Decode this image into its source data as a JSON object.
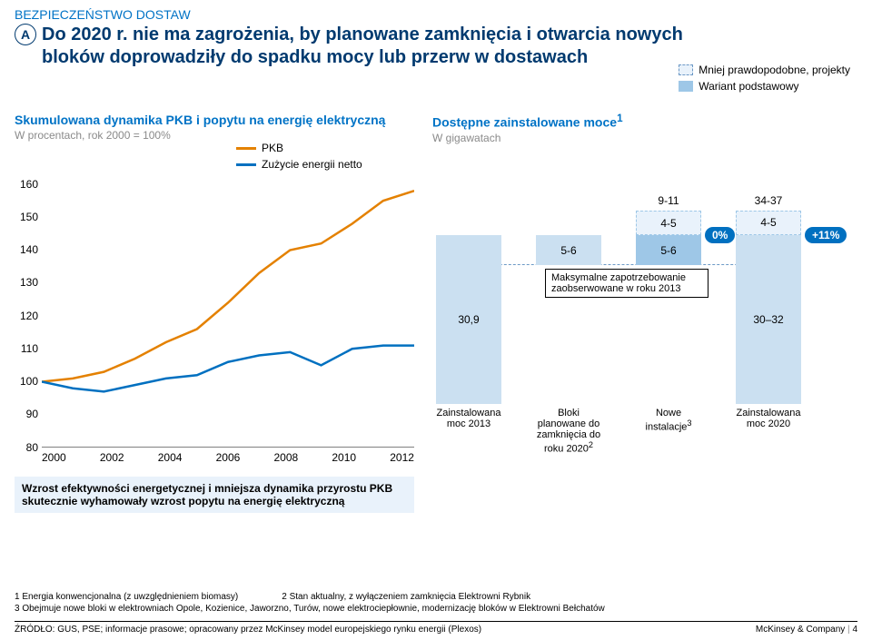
{
  "section_label": "BEZPIECZEŃSTWO DOSTAW",
  "badge": "A",
  "title": "Do 2020 r. nie ma zagrożenia, by planowane zamknięcia i otwarcia nowych bloków doprowadziły do spadku mocy lub przerw w dostawach",
  "legend_right": [
    {
      "label": "Mniej prawdopodobne, projekty",
      "type": "dashed"
    },
    {
      "label": "Wariant podstawowy",
      "type": "solid"
    }
  ],
  "left": {
    "title": "Skumulowana dynamika PKB i popytu na energię elektryczną",
    "sub": "W procentach, rok 2000 = 100%",
    "legend": [
      {
        "label": "PKB",
        "color": "#e48100"
      },
      {
        "label": "Zużycie energii netto",
        "color": "#0070c0"
      }
    ],
    "chart": {
      "type": "line",
      "xlim": [
        2000,
        2012
      ],
      "ylim": [
        80,
        160
      ],
      "ytick_step": 10,
      "xticks": [
        2000,
        2002,
        2004,
        2006,
        2008,
        2010,
        2012
      ],
      "background_color": "#ffffff",
      "line_width": 2.5,
      "series": [
        {
          "name": "PKB",
          "color": "#e48100",
          "points": [
            [
              2000,
              100
            ],
            [
              2001,
              101
            ],
            [
              2002,
              103
            ],
            [
              2003,
              107
            ],
            [
              2004,
              112
            ],
            [
              2005,
              116
            ],
            [
              2006,
              124
            ],
            [
              2007,
              133
            ],
            [
              2008,
              140
            ],
            [
              2009,
              142
            ],
            [
              2010,
              148
            ],
            [
              2011,
              155
            ],
            [
              2012,
              158
            ]
          ]
        },
        {
          "name": "Zużycie energii netto",
          "color": "#0070c0",
          "points": [
            [
              2000,
              100
            ],
            [
              2001,
              98
            ],
            [
              2002,
              97
            ],
            [
              2003,
              99
            ],
            [
              2004,
              101
            ],
            [
              2005,
              102
            ],
            [
              2006,
              106
            ],
            [
              2007,
              108
            ],
            [
              2008,
              109
            ],
            [
              2009,
              105
            ],
            [
              2010,
              110
            ],
            [
              2011,
              111
            ],
            [
              2012,
              111
            ]
          ]
        }
      ]
    },
    "caption": "Wzrost efektywności energetycznej i mniejsza dynamika przyrostu PKB skutecznie wyhamowały wzrost popytu na energię elektryczną"
  },
  "right": {
    "title": "Dostępne zainstalowane moce",
    "title_sup": "1",
    "sub": "W gigawatach",
    "chart": {
      "type": "waterfall",
      "ylim": [
        0,
        40
      ],
      "columns": [
        {
          "key": "c1",
          "x_label": "Zainstalowana moc 2013",
          "base": 0,
          "h": 30.9,
          "style": "solid",
          "color": "#cbe0f1",
          "text": "30,9"
        },
        {
          "key": "c2",
          "x_label": "Bloki planowane do zamknięcia do roku 2020",
          "base": 25.4,
          "h": 5.5,
          "style": "solid",
          "color": "#cbe0f1",
          "text": "5-6",
          "sup": "2"
        },
        {
          "key": "c3",
          "x_label": "Nowe instalacje",
          "base": 25.4,
          "h": 5.5,
          "style": "solid",
          "color": "#9ec7e7",
          "text": "5-6",
          "sup": "3",
          "top_dashed": {
            "h": 4.5,
            "text": "4-5",
            "range_label": "9-11"
          },
          "pill": "0%"
        },
        {
          "key": "c4",
          "x_label": "Zainstalowana moc 2020",
          "base": 0,
          "h": 31,
          "style": "solid",
          "color": "#cbe0f1",
          "text": "30–32",
          "top_dashed": {
            "h": 4.5,
            "text": "4-5",
            "range_label": "34-37"
          },
          "pill": "+11%"
        }
      ],
      "callout": {
        "text": "Maksymalne zapotrzebowanie zaobserwowane w roku 2013",
        "y": 25.4
      }
    }
  },
  "footnotes": {
    "f1": "1 Energia konwencjonalna (z uwzględnieniem biomasy)",
    "f2": "2 Stan aktualny, z wyłączeniem zamknięcia Elektrowni Rybnik",
    "f3": "3 Obejmuje nowe bloki w elektrowniach Opole, Kozienice, Jaworzno, Turów, nowe elektrociepłownie, modernizację bloków w Elektrowni Bełchatów"
  },
  "footer": {
    "source": "ŹRÓDŁO: GUS, PSE; informacje prasowe; opracowany przez McKinsey model europejskiego rynku energii (Plexos)",
    "brand": "McKinsey & Company",
    "page": "4"
  },
  "colors": {
    "blue_dark": "#003a6f",
    "blue": "#0070c0",
    "blue_mid": "#9ec7e7",
    "blue_light": "#cbe0f1",
    "blue_pale": "#e9f2fb",
    "orange": "#e48100"
  }
}
